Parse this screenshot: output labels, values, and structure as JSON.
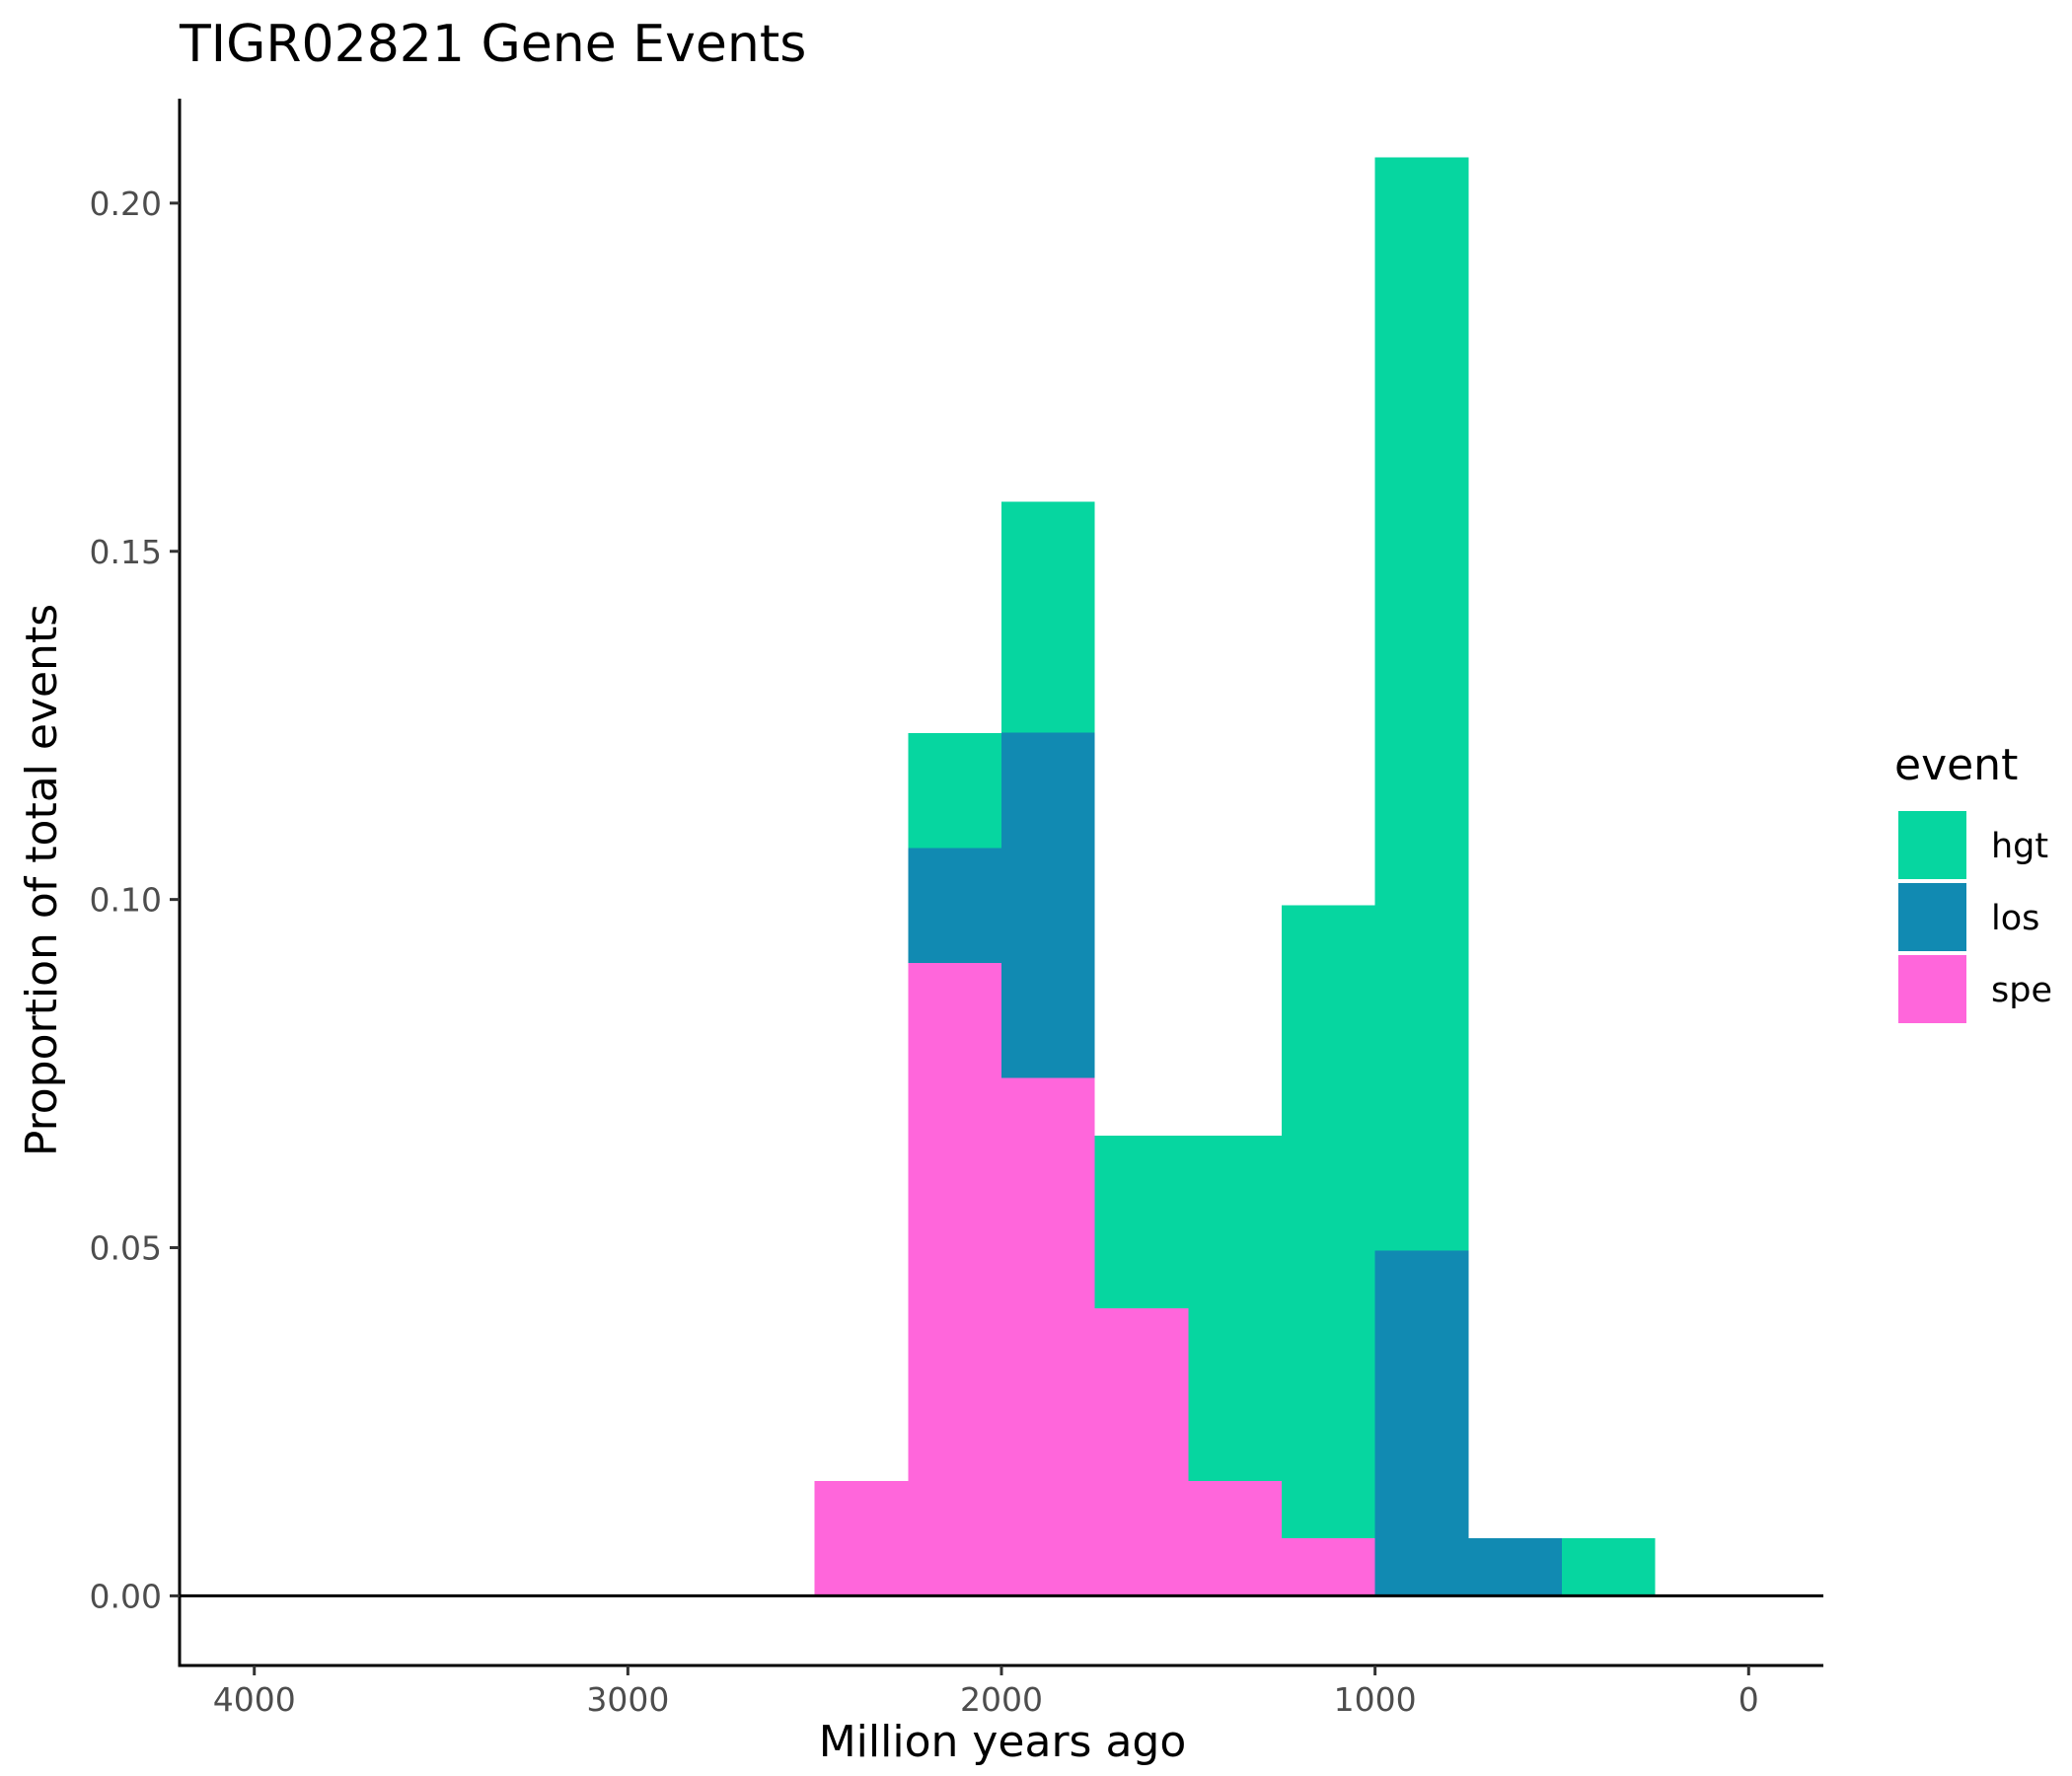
{
  "chart_data": {
    "type": "bar",
    "stacked": true,
    "title": "TIGR02821 Gene Events",
    "xlabel": "Million years ago",
    "ylabel": "Proportion of total events",
    "x_reversed": true,
    "xlim": [
      4200,
      -200
    ],
    "ylim": [
      -0.01,
      0.215
    ],
    "x_ticks": [
      4000,
      3000,
      2000,
      1000,
      0
    ],
    "x_tick_labels": [
      "4000",
      "3000",
      "2000",
      "1000",
      "0"
    ],
    "y_ticks": [
      0,
      0.05,
      0.1,
      0.15,
      0.2
    ],
    "y_tick_labels": [
      "0.00",
      "0.05",
      "0.10",
      "0.15",
      "0.20"
    ],
    "bin_width": 250,
    "bin_centers": [
      2375,
      2125,
      1875,
      1625,
      1375,
      1125,
      875,
      625,
      375
    ],
    "grid": false,
    "legend": {
      "title": "event",
      "placement": "right",
      "entries": [
        "hgt",
        "los",
        "spe"
      ]
    },
    "series": [
      {
        "name": "spe",
        "color": "#FF66DB",
        "values": [
          0.0165,
          0.0909,
          0.0744,
          0.0413,
          0.0165,
          0.0083,
          0,
          0,
          0
        ]
      },
      {
        "name": "los",
        "color": "#118AB2",
        "values": [
          0,
          0.0165,
          0.0496,
          0,
          0,
          0,
          0.0496,
          0.0083,
          0
        ]
      },
      {
        "name": "hgt",
        "color": "#06D6A0",
        "values": [
          0,
          0.0165,
          0.0331,
          0.0248,
          0.0496,
          0.0909,
          0.157,
          0,
          0.0083
        ]
      }
    ]
  }
}
